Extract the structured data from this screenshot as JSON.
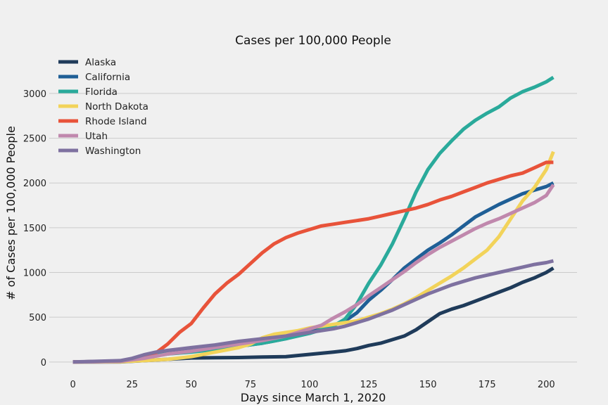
{
  "chart_data": {
    "type": "line",
    "title": "Cases per 100,000 People",
    "xlabel": "Days since March 1, 2020",
    "ylabel": "# of Cases per 100,000 People",
    "xlim": [
      -10,
      213
    ],
    "ylim": [
      -80,
      3290
    ],
    "xticks": [
      0,
      25,
      50,
      75,
      100,
      125,
      150,
      175,
      200
    ],
    "yticks": [
      0,
      500,
      1000,
      1500,
      2000,
      2500,
      3000
    ],
    "grid": "horizontal",
    "legend_position": "top-left",
    "series": [
      {
        "name": "Alaska",
        "color": "#1f3b5a",
        "points": [
          [
            0,
            0
          ],
          [
            20,
            2
          ],
          [
            30,
            15
          ],
          [
            40,
            30
          ],
          [
            50,
            45
          ],
          [
            60,
            48
          ],
          [
            70,
            50
          ],
          [
            80,
            55
          ],
          [
            90,
            60
          ],
          [
            100,
            85
          ],
          [
            110,
            110
          ],
          [
            115,
            125
          ],
          [
            120,
            150
          ],
          [
            125,
            185
          ],
          [
            130,
            210
          ],
          [
            135,
            250
          ],
          [
            140,
            290
          ],
          [
            145,
            360
          ],
          [
            150,
            450
          ],
          [
            155,
            540
          ],
          [
            160,
            590
          ],
          [
            165,
            630
          ],
          [
            170,
            680
          ],
          [
            175,
            730
          ],
          [
            180,
            780
          ],
          [
            185,
            830
          ],
          [
            190,
            890
          ],
          [
            195,
            940
          ],
          [
            200,
            1000
          ],
          [
            203,
            1050
          ]
        ]
      },
      {
        "name": "California",
        "color": "#1f5f96",
        "points": [
          [
            0,
            0
          ],
          [
            20,
            10
          ],
          [
            30,
            60
          ],
          [
            40,
            100
          ],
          [
            50,
            125
          ],
          [
            60,
            150
          ],
          [
            70,
            175
          ],
          [
            80,
            210
          ],
          [
            90,
            260
          ],
          [
            100,
            330
          ],
          [
            105,
            370
          ],
          [
            110,
            410
          ],
          [
            115,
            460
          ],
          [
            120,
            550
          ],
          [
            125,
            690
          ],
          [
            130,
            800
          ],
          [
            135,
            920
          ],
          [
            140,
            1050
          ],
          [
            145,
            1150
          ],
          [
            150,
            1250
          ],
          [
            155,
            1330
          ],
          [
            160,
            1420
          ],
          [
            165,
            1520
          ],
          [
            170,
            1620
          ],
          [
            175,
            1690
          ],
          [
            180,
            1760
          ],
          [
            185,
            1820
          ],
          [
            190,
            1880
          ],
          [
            195,
            1920
          ],
          [
            200,
            1960
          ],
          [
            203,
            2000
          ]
        ]
      },
      {
        "name": "Florida",
        "color": "#2aaa9b",
        "points": [
          [
            0,
            0
          ],
          [
            20,
            10
          ],
          [
            30,
            50
          ],
          [
            40,
            90
          ],
          [
            50,
            110
          ],
          [
            60,
            140
          ],
          [
            70,
            175
          ],
          [
            80,
            210
          ],
          [
            90,
            260
          ],
          [
            100,
            320
          ],
          [
            105,
            360
          ],
          [
            110,
            400
          ],
          [
            115,
            480
          ],
          [
            120,
            650
          ],
          [
            125,
            880
          ],
          [
            130,
            1080
          ],
          [
            135,
            1320
          ],
          [
            140,
            1600
          ],
          [
            145,
            1900
          ],
          [
            150,
            2150
          ],
          [
            155,
            2330
          ],
          [
            160,
            2470
          ],
          [
            165,
            2600
          ],
          [
            170,
            2700
          ],
          [
            175,
            2780
          ],
          [
            180,
            2850
          ],
          [
            185,
            2950
          ],
          [
            190,
            3020
          ],
          [
            195,
            3070
          ],
          [
            200,
            3130
          ],
          [
            203,
            3180
          ]
        ]
      },
      {
        "name": "North Dakota",
        "color": "#f2d35a",
        "points": [
          [
            0,
            0
          ],
          [
            20,
            3
          ],
          [
            30,
            15
          ],
          [
            40,
            30
          ],
          [
            50,
            60
          ],
          [
            60,
            110
          ],
          [
            70,
            160
          ],
          [
            75,
            200
          ],
          [
            80,
            270
          ],
          [
            85,
            310
          ],
          [
            90,
            330
          ],
          [
            95,
            350
          ],
          [
            100,
            380
          ],
          [
            110,
            420
          ],
          [
            115,
            440
          ],
          [
            120,
            460
          ],
          [
            125,
            500
          ],
          [
            130,
            540
          ],
          [
            135,
            590
          ],
          [
            140,
            650
          ],
          [
            145,
            720
          ],
          [
            150,
            800
          ],
          [
            155,
            880
          ],
          [
            160,
            960
          ],
          [
            165,
            1050
          ],
          [
            170,
            1150
          ],
          [
            175,
            1250
          ],
          [
            180,
            1400
          ],
          [
            185,
            1600
          ],
          [
            190,
            1800
          ],
          [
            195,
            1950
          ],
          [
            200,
            2150
          ],
          [
            203,
            2350
          ]
        ]
      },
      {
        "name": "Rhode Island",
        "color": "#e8533a",
        "points": [
          [
            0,
            0
          ],
          [
            20,
            10
          ],
          [
            30,
            60
          ],
          [
            35,
            100
          ],
          [
            40,
            200
          ],
          [
            45,
            330
          ],
          [
            50,
            430
          ],
          [
            55,
            600
          ],
          [
            60,
            760
          ],
          [
            65,
            880
          ],
          [
            70,
            980
          ],
          [
            75,
            1100
          ],
          [
            80,
            1220
          ],
          [
            85,
            1320
          ],
          [
            90,
            1390
          ],
          [
            95,
            1440
          ],
          [
            100,
            1480
          ],
          [
            105,
            1520
          ],
          [
            110,
            1540
          ],
          [
            115,
            1560
          ],
          [
            120,
            1580
          ],
          [
            125,
            1600
          ],
          [
            130,
            1630
          ],
          [
            135,
            1660
          ],
          [
            140,
            1690
          ],
          [
            145,
            1720
          ],
          [
            150,
            1760
          ],
          [
            155,
            1810
          ],
          [
            160,
            1850
          ],
          [
            165,
            1900
          ],
          [
            170,
            1950
          ],
          [
            175,
            2000
          ],
          [
            180,
            2040
          ],
          [
            185,
            2080
          ],
          [
            190,
            2110
          ],
          [
            195,
            2170
          ],
          [
            200,
            2230
          ],
          [
            203,
            2230
          ]
        ]
      },
      {
        "name": "Utah",
        "color": "#c088ad",
        "points": [
          [
            0,
            0
          ],
          [
            20,
            8
          ],
          [
            30,
            40
          ],
          [
            40,
            90
          ],
          [
            50,
            120
          ],
          [
            60,
            160
          ],
          [
            70,
            200
          ],
          [
            80,
            240
          ],
          [
            90,
            290
          ],
          [
            100,
            370
          ],
          [
            105,
            410
          ],
          [
            110,
            490
          ],
          [
            115,
            560
          ],
          [
            120,
            640
          ],
          [
            125,
            740
          ],
          [
            130,
            830
          ],
          [
            135,
            920
          ],
          [
            140,
            1010
          ],
          [
            145,
            1110
          ],
          [
            150,
            1200
          ],
          [
            155,
            1280
          ],
          [
            160,
            1350
          ],
          [
            165,
            1420
          ],
          [
            170,
            1490
          ],
          [
            175,
            1550
          ],
          [
            180,
            1600
          ],
          [
            185,
            1660
          ],
          [
            190,
            1720
          ],
          [
            195,
            1780
          ],
          [
            200,
            1860
          ],
          [
            203,
            1980
          ]
        ]
      },
      {
        "name": "Washington",
        "color": "#7e71a0",
        "points": [
          [
            0,
            0
          ],
          [
            20,
            15
          ],
          [
            25,
            40
          ],
          [
            30,
            80
          ],
          [
            35,
            110
          ],
          [
            40,
            130
          ],
          [
            50,
            160
          ],
          [
            60,
            190
          ],
          [
            70,
            230
          ],
          [
            80,
            260
          ],
          [
            90,
            290
          ],
          [
            100,
            330
          ],
          [
            110,
            370
          ],
          [
            115,
            400
          ],
          [
            120,
            440
          ],
          [
            125,
            480
          ],
          [
            130,
            530
          ],
          [
            135,
            580
          ],
          [
            140,
            640
          ],
          [
            145,
            700
          ],
          [
            150,
            760
          ],
          [
            155,
            810
          ],
          [
            160,
            860
          ],
          [
            165,
            900
          ],
          [
            170,
            940
          ],
          [
            175,
            970
          ],
          [
            180,
            1000
          ],
          [
            185,
            1030
          ],
          [
            190,
            1060
          ],
          [
            195,
            1090
          ],
          [
            200,
            1110
          ],
          [
            203,
            1130
          ]
        ]
      }
    ]
  }
}
